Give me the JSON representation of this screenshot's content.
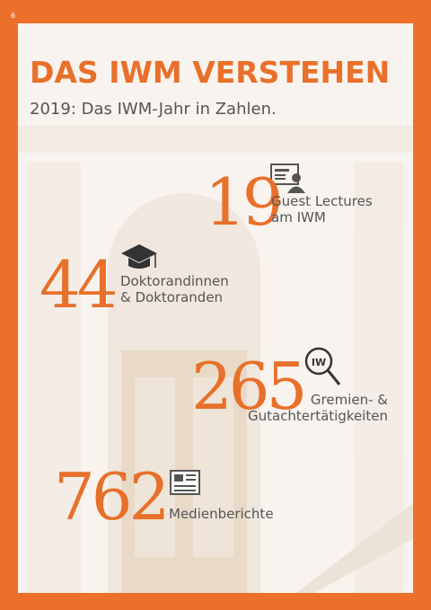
{
  "page_number": "6",
  "header": {
    "title": "DAS IWM VERSTEHEN",
    "subtitle": "2019: Das IWM-Jahr in Zahlen."
  },
  "stats": [
    {
      "number": 19,
      "label": [
        "Guest Lectures",
        "am IWM"
      ]
    },
    {
      "number": 44,
      "label": [
        "Doktorandinnen",
        "& Doktoranden"
      ]
    },
    {
      "number": 265,
      "label": [
        "Gremien- &",
        "Gutachtertätigkeiten"
      ]
    },
    {
      "number": 762,
      "label": [
        "Medienberichte"
      ]
    }
  ]
}
